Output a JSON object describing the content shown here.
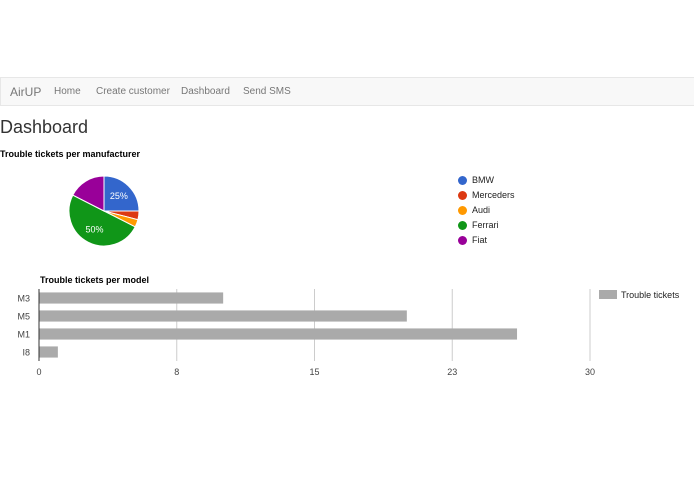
{
  "nav": {
    "brand": "AirUP",
    "links": [
      "Home",
      "Create customer",
      "Dashboard",
      "Send SMS"
    ]
  },
  "page": {
    "title": "Dashboard"
  },
  "chart_data": [
    {
      "type": "pie",
      "title": "Trouble tickets per manufacturer",
      "categories": [
        "BMW",
        "Merceders",
        "Audi",
        "Ferrari",
        "Fiat"
      ],
      "values": [
        25,
        4,
        3.5,
        50,
        17.5
      ],
      "colors": [
        "#3366cc",
        "#dc3912",
        "#ff9900",
        "#109618",
        "#990099"
      ],
      "data_labels": [
        "25%",
        "",
        "",
        "50%",
        ""
      ],
      "legend": "right"
    },
    {
      "type": "bar",
      "orientation": "horizontal",
      "title": "Trouble tickets per model",
      "categories": [
        "M3",
        "M5",
        "M1",
        "I8"
      ],
      "series": [
        {
          "name": "Trouble tickets",
          "values": [
            10,
            20,
            26,
            1
          ],
          "color": "#aaaaaa"
        }
      ],
      "xlim": [
        0,
        30
      ],
      "xticks": [
        "0",
        "8",
        "15",
        "23",
        "30"
      ],
      "grid": true,
      "legend": "top-right"
    }
  ]
}
